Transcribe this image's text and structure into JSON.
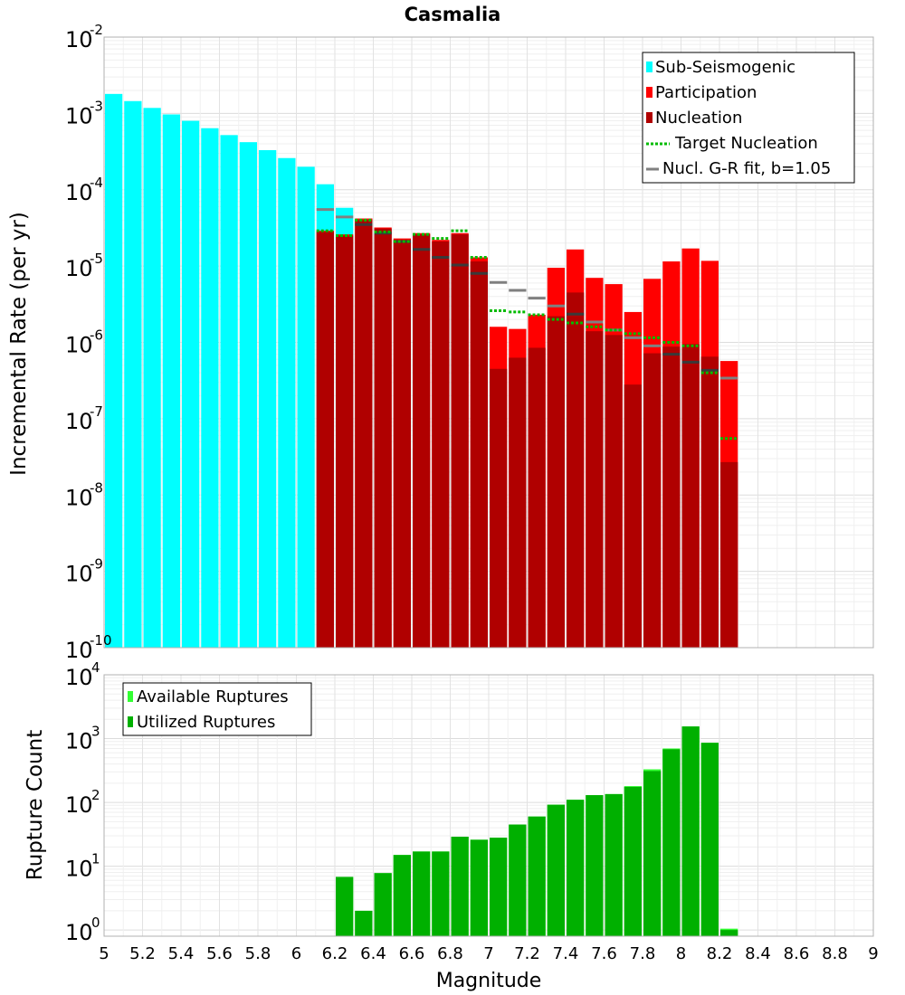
{
  "chart_data": [
    {
      "type": "bar",
      "title": "Casmalia",
      "ylabel": "Incremental Rate (per yr)",
      "xlabel": "",
      "xlim": [
        5,
        9
      ],
      "ylim": [
        1e-10,
        0.01
      ],
      "y_scale": "log",
      "grid": true,
      "legend_position": "top-right",
      "y_tick_labels": [
        {
          "base": "10",
          "exp": "-10"
        },
        {
          "base": "10",
          "exp": "-9"
        },
        {
          "base": "10",
          "exp": "-8"
        },
        {
          "base": "10",
          "exp": "-7"
        },
        {
          "base": "10",
          "exp": "-6"
        },
        {
          "base": "10",
          "exp": "-5"
        },
        {
          "base": "10",
          "exp": "-4"
        },
        {
          "base": "10",
          "exp": "-3"
        },
        {
          "base": "10",
          "exp": "-2"
        }
      ],
      "series": [
        {
          "name": "Sub-Seismogenic",
          "color": "#00ffff",
          "x": [
            5.05,
            5.15,
            5.25,
            5.35,
            5.45,
            5.55,
            5.65,
            5.75,
            5.85,
            5.95,
            6.05,
            6.15,
            6.25
          ],
          "values": [
            0.0018,
            0.00145,
            0.00118,
            0.00097,
            0.0008,
            0.00064,
            0.00052,
            0.00042,
            0.00033,
            0.00026,
            0.0002,
            0.000118,
            5.8e-05
          ]
        },
        {
          "name": "Participation",
          "color": "#ff0000",
          "x": [
            6.15,
            6.25,
            6.35,
            6.45,
            6.55,
            6.65,
            6.75,
            6.85,
            6.95,
            7.05,
            7.15,
            7.25,
            7.35,
            7.45,
            7.55,
            7.65,
            7.75,
            7.85,
            7.95,
            8.05,
            8.15,
            8.25
          ],
          "values": [
            2.9e-05,
            2.6e-05,
            4.2e-05,
            3.2e-05,
            2.3e-05,
            2.7e-05,
            2.2e-05,
            2.7e-05,
            1.3e-05,
            1.6e-06,
            1.5e-06,
            2.3e-06,
            9.5e-06,
            1.65e-05,
            7e-06,
            5.8e-06,
            2.5e-06,
            6.8e-06,
            1.15e-05,
            1.7e-05,
            1.17e-05,
            5.7e-07
          ]
        },
        {
          "name": "Nucleation",
          "color": "#b00000",
          "x": [
            6.15,
            6.25,
            6.35,
            6.45,
            6.55,
            6.65,
            6.75,
            6.85,
            6.95,
            7.05,
            7.15,
            7.25,
            7.35,
            7.45,
            7.55,
            7.65,
            7.75,
            7.85,
            7.95,
            8.05,
            8.15,
            8.25
          ],
          "values": [
            2.8e-05,
            2.5e-05,
            4e-05,
            3.1e-05,
            2.2e-05,
            2.6e-05,
            2.1e-05,
            2.6e-05,
            1.15e-05,
            4.5e-07,
            6.3e-07,
            8.5e-07,
            2.2e-06,
            4.5e-06,
            1.4e-06,
            1.25e-06,
            2.8e-07,
            7.2e-07,
            8.8e-07,
            9.5e-07,
            6.5e-07,
            2.7e-08
          ]
        },
        {
          "name": "Target Nucleation",
          "color": "#00bb00",
          "x": [
            6.15,
            6.25,
            6.35,
            6.45,
            6.55,
            6.65,
            6.75,
            6.85,
            6.95,
            7.05,
            7.15,
            7.25,
            7.35,
            7.45,
            7.55,
            7.65,
            7.75,
            7.85,
            7.95,
            8.05,
            8.15,
            8.25
          ],
          "values": [
            2.9e-05,
            2.5e-05,
            4e-05,
            2.8e-05,
            2.1e-05,
            2.6e-05,
            2.3e-05,
            2.9e-05,
            1.3e-05,
            2.6e-06,
            2.5e-06,
            2.3e-06,
            2e-06,
            1.8e-06,
            1.6e-06,
            1.45e-06,
            1.3e-06,
            1.15e-06,
            1e-06,
            9e-07,
            4e-07,
            5.5e-08
          ]
        },
        {
          "name": "Nucl. G-R fit, b=1.05",
          "color": "#808080",
          "x": [
            6.15,
            6.25,
            6.35,
            6.45,
            6.55,
            6.65,
            6.75,
            6.85,
            6.95,
            7.05,
            7.15,
            7.25,
            7.35,
            7.45,
            7.55,
            7.65,
            7.75,
            7.85,
            7.95,
            8.05,
            8.15,
            8.25
          ],
          "values": [
            5.5e-05,
            4.4e-05,
            3.5e-05,
            2.7e-05,
            2.1e-05,
            1.65e-05,
            1.3e-05,
            1.03e-05,
            8e-06,
            6.1e-06,
            4.8e-06,
            3.8e-06,
            3e-06,
            2.35e-06,
            1.85e-06,
            1.45e-06,
            1.15e-06,
            9e-07,
            7e-07,
            5.5e-07,
            4.3e-07,
            3.4e-07
          ]
        }
      ]
    },
    {
      "type": "bar",
      "title": "",
      "ylabel": "Rupture Count",
      "xlabel": "Magnitude",
      "xlim": [
        5,
        9
      ],
      "ylim": [
        0.8,
        10000
      ],
      "y_scale": "log",
      "grid": true,
      "legend_position": "top-left",
      "x_tick_labels": [
        "5",
        "5.2",
        "5.4",
        "5.6",
        "5.8",
        "6",
        "6.2",
        "6.4",
        "6.6",
        "6.8",
        "7",
        "7.2",
        "7.4",
        "7.6",
        "7.8",
        "8",
        "8.2",
        "8.4",
        "8.6",
        "8.8",
        "9"
      ],
      "y_tick_labels": [
        {
          "base": "10",
          "exp": "0"
        },
        {
          "base": "10",
          "exp": "1"
        },
        {
          "base": "10",
          "exp": "2"
        },
        {
          "base": "10",
          "exp": "3"
        },
        {
          "base": "10",
          "exp": "4"
        }
      ],
      "x": [
        6.25,
        6.35,
        6.45,
        6.55,
        6.65,
        6.75,
        6.85,
        6.95,
        7.05,
        7.15,
        7.25,
        7.35,
        7.45,
        7.55,
        7.65,
        7.75,
        7.85,
        7.95,
        8.05,
        8.15,
        8.25
      ],
      "series": [
        {
          "name": "Available Ruptures",
          "color": "#33ff33",
          "values": [
            6.8,
            2,
            7.8,
            15,
            17,
            17,
            29,
            26,
            28,
            45,
            60,
            92,
            110,
            130,
            135,
            180,
            330,
            700,
            1550,
            860,
            1.05
          ]
        },
        {
          "name": "Utilized Ruptures",
          "color": "#00b000",
          "values": [
            6.8,
            2,
            7.8,
            15,
            17,
            17,
            29,
            26,
            28,
            45,
            60,
            92,
            110,
            130,
            135,
            175,
            310,
            680,
            1550,
            860,
            1.0
          ]
        }
      ]
    }
  ]
}
